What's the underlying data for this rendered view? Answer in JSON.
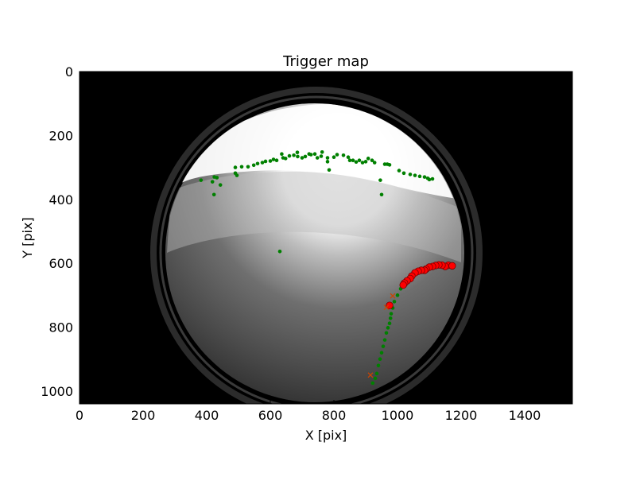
{
  "chart_data": {
    "type": "scatter",
    "title": "Trigger map",
    "xlabel": "X [pix]",
    "ylabel": "Y [pix]",
    "xlim": [
      0,
      1550
    ],
    "ylim": [
      1040,
      0
    ],
    "x_ticks": [
      0,
      200,
      400,
      600,
      800,
      1000,
      1200,
      1400
    ],
    "y_ticks": [
      0,
      200,
      400,
      600,
      800,
      1000
    ],
    "background_image": "all-sky fisheye camera frame (grayscale)",
    "colors": {
      "green_points": "#008000",
      "red_points": "#ff0000",
      "orange_marker": "#cc4400"
    },
    "series": [
      {
        "name": "",
        "marker": "small-dot",
        "color": "#008000",
        "points": [
          [
            382,
            340
          ],
          [
            418,
            345
          ],
          [
            424,
            330
          ],
          [
            432,
            332
          ],
          [
            443,
            355
          ],
          [
            423,
            385
          ],
          [
            490,
            300
          ],
          [
            490,
            318
          ],
          [
            495,
            325
          ],
          [
            510,
            298
          ],
          [
            530,
            298
          ],
          [
            548,
            293
          ],
          [
            560,
            288
          ],
          [
            575,
            285
          ],
          [
            585,
            281
          ],
          [
            600,
            280
          ],
          [
            610,
            275
          ],
          [
            620,
            278
          ],
          [
            636,
            258
          ],
          [
            640,
            270
          ],
          [
            648,
            272
          ],
          [
            660,
            264
          ],
          [
            674,
            262
          ],
          [
            685,
            253
          ],
          [
            686,
            266
          ],
          [
            700,
            270
          ],
          [
            710,
            266
          ],
          [
            722,
            258
          ],
          [
            728,
            260
          ],
          [
            740,
            258
          ],
          [
            748,
            270
          ],
          [
            760,
            265
          ],
          [
            763,
            252
          ],
          [
            780,
            270
          ],
          [
            780,
            282
          ],
          [
            785,
            308
          ],
          [
            800,
            268
          ],
          [
            810,
            260
          ],
          [
            830,
            262
          ],
          [
            845,
            268
          ],
          [
            850,
            278
          ],
          [
            860,
            278
          ],
          [
            870,
            283
          ],
          [
            880,
            278
          ],
          [
            890,
            285
          ],
          [
            900,
            282
          ],
          [
            908,
            272
          ],
          [
            920,
            278
          ],
          [
            928,
            285
          ],
          [
            946,
            340
          ],
          [
            950,
            385
          ],
          [
            960,
            290
          ],
          [
            968,
            290
          ],
          [
            975,
            292
          ],
          [
            1005,
            310
          ],
          [
            1020,
            318
          ],
          [
            1040,
            322
          ],
          [
            1055,
            325
          ],
          [
            1070,
            328
          ],
          [
            1085,
            330
          ],
          [
            1095,
            334
          ],
          [
            1100,
            338
          ],
          [
            1110,
            336
          ],
          [
            630,
            563
          ],
          [
            1028,
            660
          ],
          [
            1010,
            680
          ],
          [
            1000,
            700
          ],
          [
            990,
            720
          ],
          [
            985,
            740
          ],
          [
            980,
            758
          ],
          [
            978,
            772
          ],
          [
            975,
            788
          ],
          [
            970,
            802
          ],
          [
            965,
            818
          ],
          [
            960,
            840
          ],
          [
            955,
            860
          ],
          [
            950,
            880
          ],
          [
            945,
            900
          ],
          [
            940,
            920
          ],
          [
            935,
            945
          ],
          [
            930,
            960
          ],
          [
            922,
            975
          ]
        ]
      },
      {
        "name": "",
        "marker": "circle",
        "color": "#ff0000",
        "points": [
          [
            1160,
            606
          ],
          [
            1172,
            608
          ],
          [
            1150,
            610
          ],
          [
            1140,
            606
          ],
          [
            1130,
            605
          ],
          [
            1120,
            607
          ],
          [
            1110,
            610
          ],
          [
            1100,
            612
          ],
          [
            1090,
            618
          ],
          [
            1085,
            622
          ],
          [
            1075,
            622
          ],
          [
            1065,
            625
          ],
          [
            1055,
            630
          ],
          [
            1045,
            640
          ],
          [
            1040,
            648
          ],
          [
            1030,
            655
          ],
          [
            1022,
            662
          ],
          [
            1018,
            668
          ],
          [
            975,
            732
          ]
        ]
      },
      {
        "name": "",
        "marker": "x",
        "color": "#cc4400",
        "points": [
          [
            985,
            702
          ],
          [
            965,
            738
          ],
          [
            915,
            950
          ]
        ]
      }
    ]
  }
}
